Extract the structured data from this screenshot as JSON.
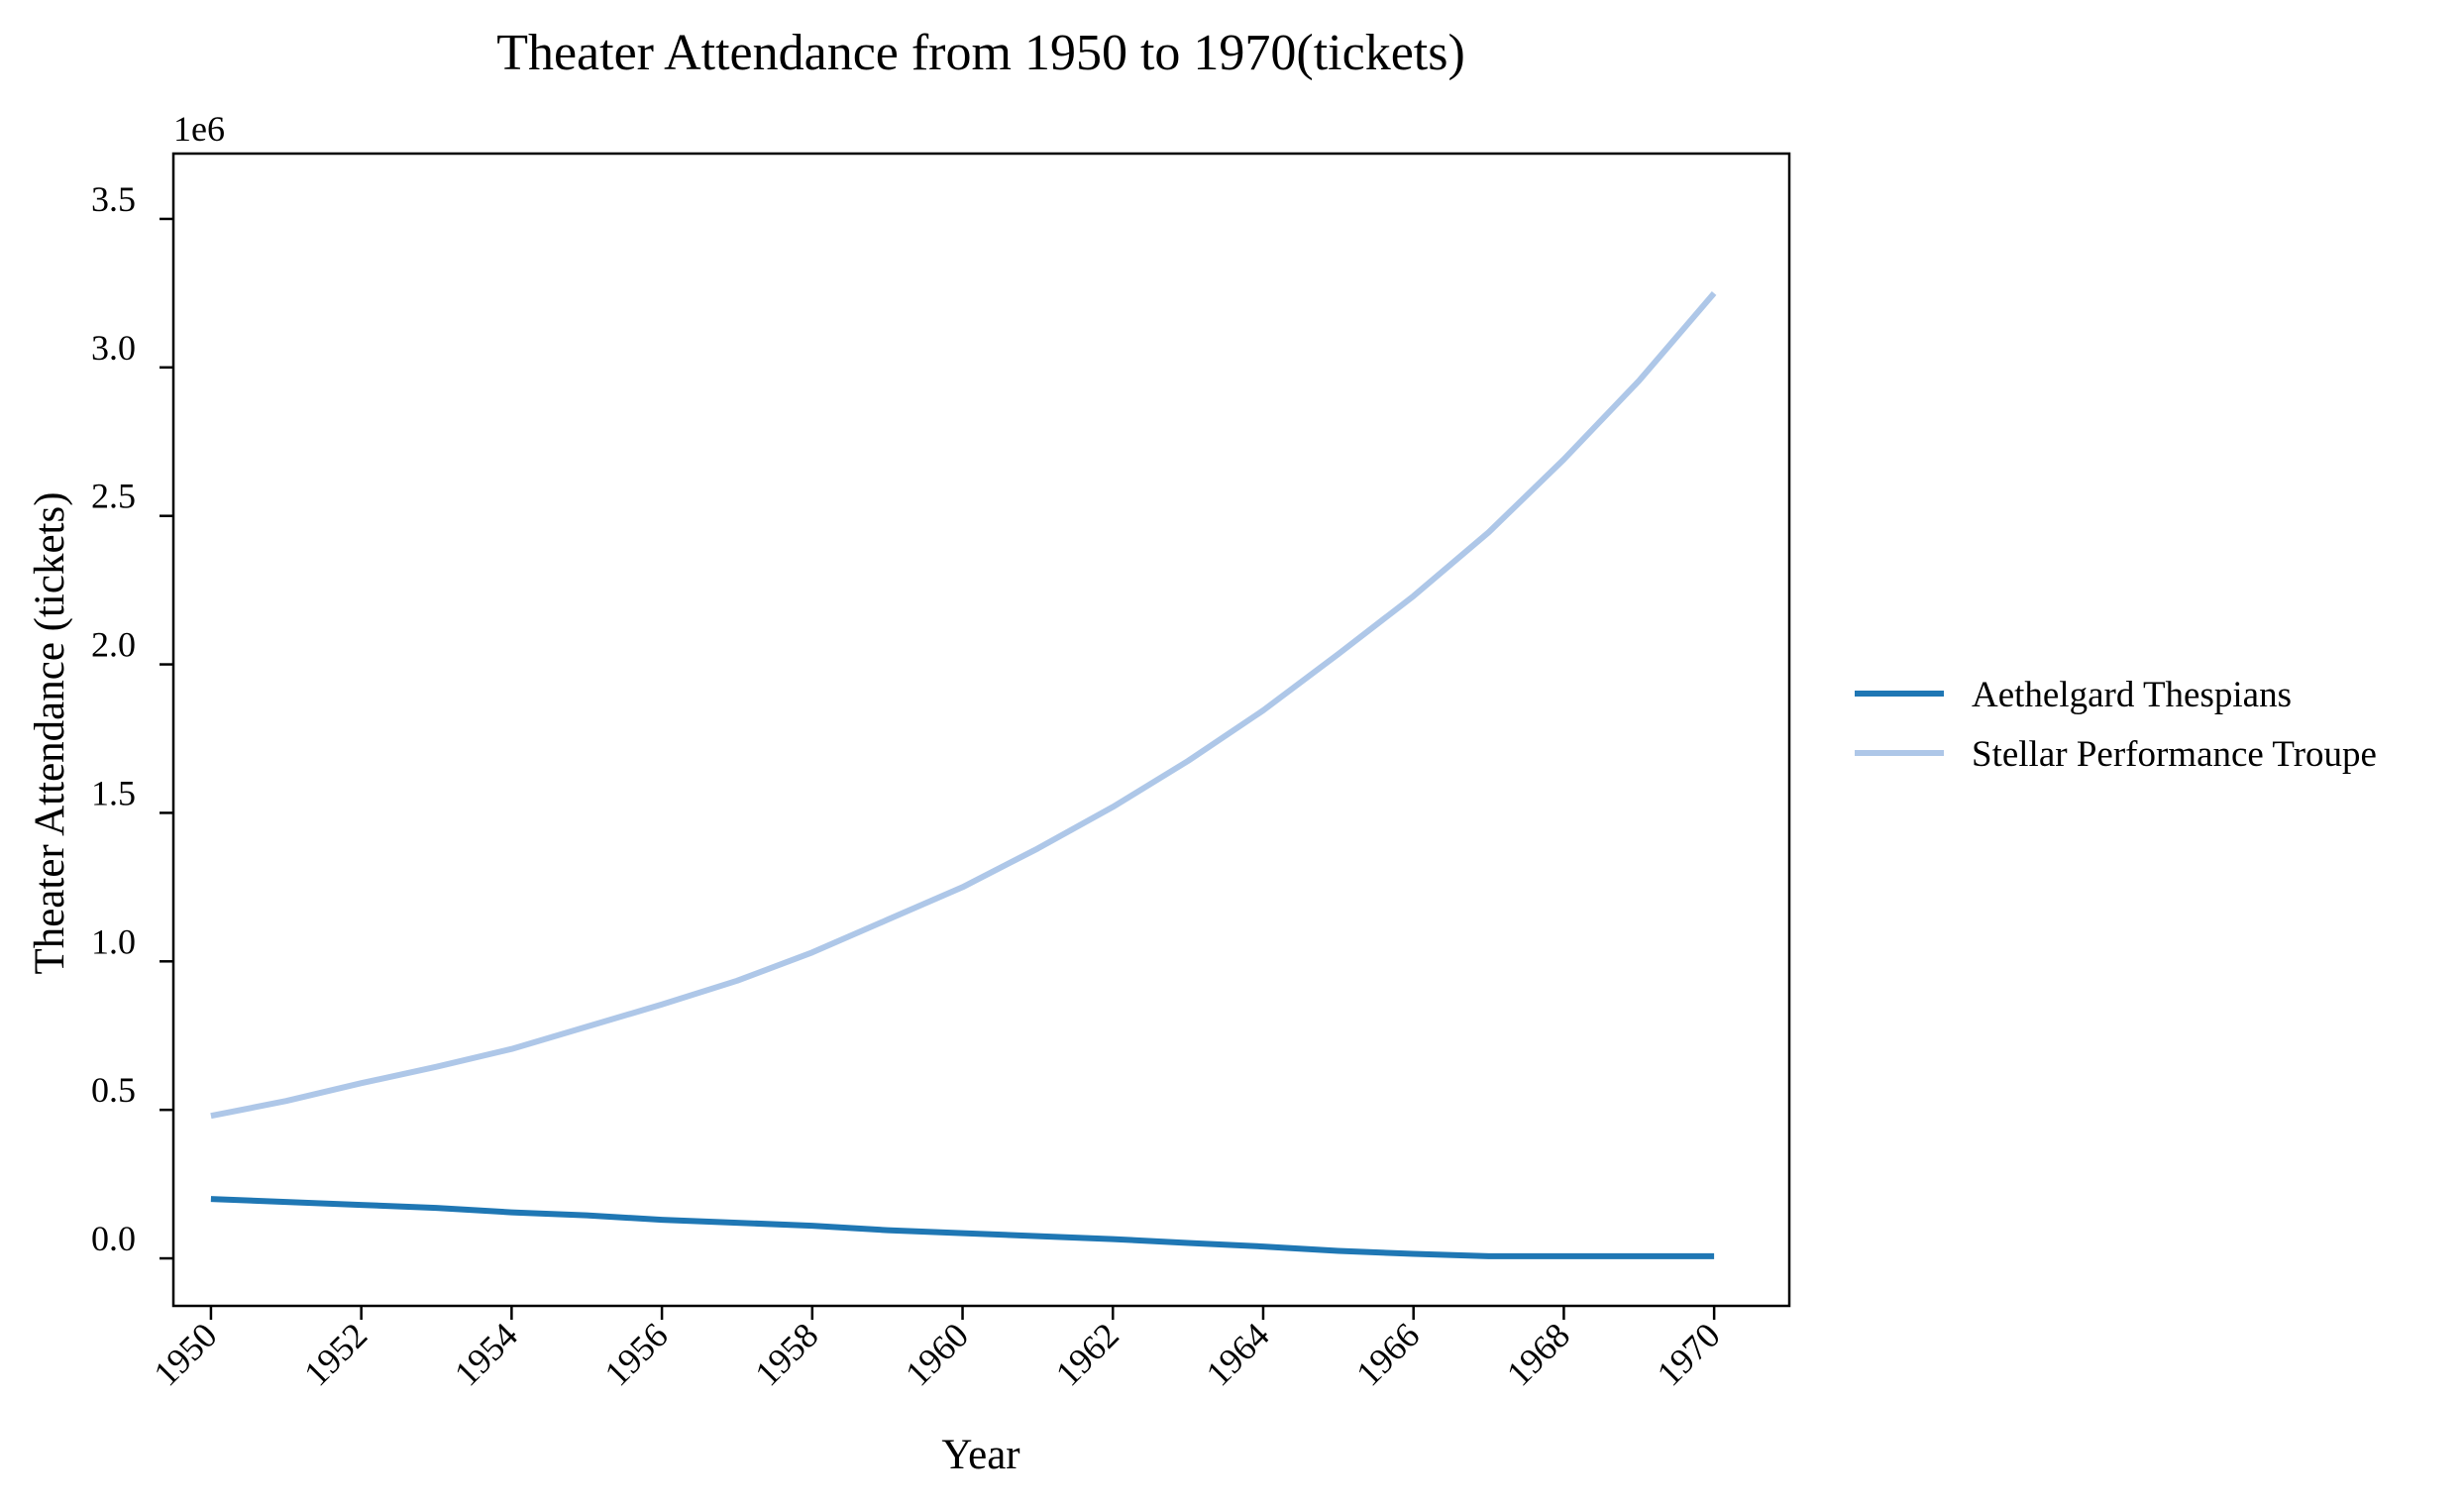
{
  "chart_data": {
    "type": "line",
    "title": "Theater Attendance from 1950 to 1970(tickets)",
    "xlabel": "Year",
    "ylabel": "Theater Attendance (tickets)",
    "y_offset_label": "1e6",
    "x": [
      1950,
      1951,
      1952,
      1953,
      1954,
      1955,
      1956,
      1957,
      1958,
      1959,
      1960,
      1961,
      1962,
      1963,
      1964,
      1965,
      1966,
      1967,
      1968,
      1969,
      1970
    ],
    "x_ticks": [
      "1950",
      "1952",
      "1954",
      "1956",
      "1958",
      "1960",
      "1962",
      "1964",
      "1966",
      "1968",
      "1970"
    ],
    "y_ticks": [
      "0.0",
      "0.5",
      "1.0",
      "1.5",
      "2.0",
      "2.5",
      "3.0",
      "3.5"
    ],
    "xlim": [
      1949.5,
      1971.0
    ],
    "ylim": [
      -0.16,
      3.72
    ],
    "y_scale_multiplier": 1000000,
    "grid": false,
    "legend_position": "right",
    "series": [
      {
        "name": "Aethelgard Thespians",
        "color": "#1f77b4",
        "values": [
          0.2,
          0.19,
          0.18,
          0.17,
          0.155,
          0.145,
          0.13,
          0.12,
          0.11,
          0.095,
          0.085,
          0.075,
          0.065,
          0.052,
          0.04,
          0.025,
          0.015,
          0.007,
          0.007,
          0.007,
          0.007
        ]
      },
      {
        "name": "Stellar Performance Troupe",
        "color": "#aec7e8",
        "values": [
          0.48,
          0.53,
          0.59,
          0.645,
          0.705,
          0.78,
          0.855,
          0.935,
          1.03,
          1.14,
          1.25,
          1.38,
          1.52,
          1.675,
          1.845,
          2.035,
          2.23,
          2.445,
          2.69,
          2.955,
          3.25
        ]
      }
    ]
  }
}
